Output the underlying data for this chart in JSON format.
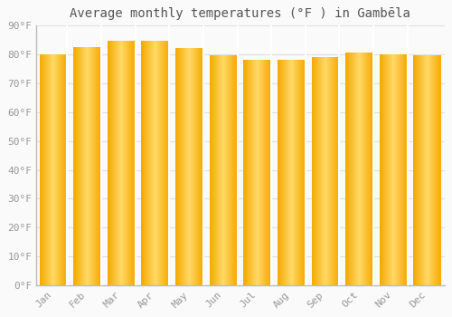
{
  "title": "Average monthly temperatures (°F ) in Gambēla",
  "months": [
    "Jan",
    "Feb",
    "Mar",
    "Apr",
    "May",
    "Jun",
    "Jul",
    "Aug",
    "Sep",
    "Oct",
    "Nov",
    "Dec"
  ],
  "values": [
    80,
    82.5,
    84.5,
    84.5,
    82,
    79.5,
    78,
    78,
    79,
    80.5,
    80,
    79.5
  ],
  "bar_color_center": "#FFD966",
  "bar_color_edge": "#F5A800",
  "bar_sep_color": "#FFFFFF",
  "background_color": "#FAFAFA",
  "grid_color": "#E0E0E0",
  "text_color": "#999999",
  "spine_color": "#BBBBBB",
  "ylim": [
    0,
    90
  ],
  "yticks": [
    0,
    10,
    20,
    30,
    40,
    50,
    60,
    70,
    80,
    90
  ],
  "ytick_labels": [
    "0°F",
    "10°F",
    "20°F",
    "30°F",
    "40°F",
    "50°F",
    "60°F",
    "70°F",
    "80°F",
    "90°F"
  ],
  "title_fontsize": 10,
  "tick_fontsize": 8,
  "bar_width": 0.82
}
